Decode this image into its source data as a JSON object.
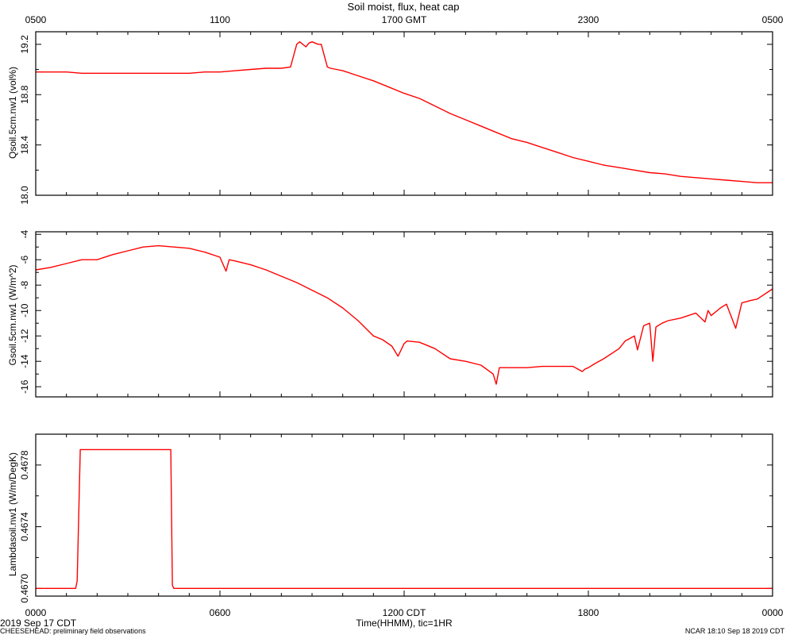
{
  "title": "Soil moist, flux, heat cap",
  "top_axis": {
    "ticks": [
      "0500",
      "1100",
      "1700 GMT",
      "2300",
      "0500"
    ]
  },
  "bottom_axis": {
    "ticks": [
      "0000",
      "0600",
      "1200 CDT",
      "1800",
      "0000"
    ],
    "label": "Time(HHMM), tic=1HR",
    "date_label": "2019 Sep 17 CDT"
  },
  "footer": {
    "left": "CHEESEHEAD: preliminary field observations",
    "right": "NCAR 18:10 Sep 18 2019 CDT"
  },
  "colors": {
    "line": "#ff0000",
    "axis": "#000000",
    "background": "#ffffff"
  },
  "chart_data": [
    {
      "type": "line",
      "ylabel": "Qsoil.5cm.nw1 (vol%)",
      "ylim": [
        18.0,
        19.3
      ],
      "yticks": [
        18.0,
        18.4,
        18.8,
        19.2
      ],
      "ytick_labels": [
        "18.0",
        "18.4",
        "18.8",
        "19.2"
      ],
      "xlim": [
        0,
        24
      ],
      "series": [
        {
          "x": [
            0,
            0.5,
            1.0,
            1.5,
            2.0,
            2.5,
            3.0,
            3.5,
            4.0,
            4.5,
            5.0,
            5.5,
            6.0,
            6.5,
            7.0,
            7.5,
            8.0,
            8.3,
            8.5,
            8.6,
            8.8,
            8.9,
            9.0,
            9.2,
            9.3,
            9.5,
            9.6,
            9.8,
            10.0,
            10.5,
            11.0,
            11.5,
            12.0,
            12.5,
            13.0,
            13.5,
            14.0,
            14.5,
            15.0,
            15.5,
            16.0,
            16.5,
            17.0,
            17.5,
            18.0,
            18.5,
            19.0,
            19.5,
            20.0,
            20.5,
            21.0,
            21.5,
            22.0,
            22.5,
            23.0,
            23.5,
            24.0
          ],
          "values": [
            18.98,
            18.98,
            18.98,
            18.97,
            18.97,
            18.97,
            18.97,
            18.97,
            18.97,
            18.97,
            18.97,
            18.98,
            18.98,
            18.99,
            19.0,
            19.01,
            19.01,
            19.02,
            19.2,
            19.22,
            19.18,
            19.21,
            19.22,
            19.2,
            19.2,
            19.02,
            19.01,
            19.0,
            18.99,
            18.95,
            18.91,
            18.86,
            18.81,
            18.77,
            18.71,
            18.65,
            18.6,
            18.55,
            18.5,
            18.45,
            18.42,
            18.38,
            18.34,
            18.3,
            18.27,
            18.24,
            18.22,
            18.2,
            18.18,
            18.17,
            18.15,
            18.14,
            18.13,
            18.12,
            18.11,
            18.1,
            18.1
          ]
        }
      ]
    },
    {
      "type": "line",
      "ylabel": "Gsoil.5cm.nw1 (W/m^2)",
      "ylim": [
        -16.8,
        -3.8
      ],
      "yticks": [
        -16,
        -14,
        -12,
        -10,
        -8,
        -6,
        -4
      ],
      "ytick_labels": [
        "-16",
        "-14",
        "-12",
        "-10",
        "-8",
        "-6",
        "-4"
      ],
      "xlim": [
        0,
        24
      ],
      "series": [
        {
          "x": [
            0,
            0.5,
            1.0,
            1.5,
            2.0,
            2.5,
            3.0,
            3.5,
            4.0,
            4.5,
            5.0,
            5.5,
            6.0,
            6.2,
            6.3,
            6.5,
            7.0,
            7.5,
            8.0,
            8.5,
            9.0,
            9.5,
            10.0,
            10.5,
            11.0,
            11.3,
            11.6,
            11.8,
            12.0,
            12.1,
            12.5,
            13.0,
            13.5,
            14.0,
            14.5,
            14.9,
            15.0,
            15.1,
            15.3,
            15.5,
            16.0,
            16.5,
            17.0,
            17.5,
            17.8,
            17.9,
            18.0,
            18.2,
            18.5,
            19.0,
            19.2,
            19.5,
            19.6,
            19.8,
            20.0,
            20.1,
            20.2,
            20.4,
            20.6,
            21.0,
            21.5,
            21.8,
            21.9,
            22.0,
            22.3,
            22.5,
            22.8,
            23.0,
            23.3,
            23.5,
            24.0
          ],
          "values": [
            -6.8,
            -6.6,
            -6.3,
            -6.0,
            -6.0,
            -5.6,
            -5.3,
            -5.0,
            -4.9,
            -5.0,
            -5.1,
            -5.4,
            -5.8,
            -6.9,
            -6.0,
            -6.1,
            -6.4,
            -6.8,
            -7.3,
            -7.8,
            -8.4,
            -9.0,
            -9.8,
            -10.8,
            -12.0,
            -12.3,
            -12.8,
            -13.6,
            -12.6,
            -12.4,
            -12.5,
            -13.0,
            -13.8,
            -14.0,
            -14.3,
            -15.0,
            -15.8,
            -14.5,
            -14.5,
            -14.5,
            -14.5,
            -14.4,
            -14.4,
            -14.4,
            -14.8,
            -14.6,
            -14.5,
            -14.2,
            -13.8,
            -13.0,
            -12.4,
            -12.0,
            -13.1,
            -11.2,
            -11.0,
            -14.0,
            -11.3,
            -11.0,
            -10.8,
            -10.6,
            -10.2,
            -10.9,
            -10.0,
            -10.4,
            -9.8,
            -9.5,
            -11.4,
            -9.4,
            -9.2,
            -9.1,
            -8.3
          ]
        }
      ]
    },
    {
      "type": "line",
      "ylabel": "Lambdasoil.nw1 (W/m/DegK)",
      "ylim": [
        0.46695,
        0.468
      ],
      "yticks": [
        0.467,
        0.4674,
        0.4678
      ],
      "ytick_labels": [
        "0.4670",
        "0.4674",
        "0.4678"
      ],
      "xlim": [
        0,
        24
      ],
      "series": [
        {
          "x": [
            0,
            1.3,
            1.35,
            1.45,
            4.4,
            4.45,
            4.5,
            24
          ],
          "values": [
            0.467,
            0.467,
            0.46705,
            0.4679,
            0.4679,
            0.46702,
            0.467,
            0.467
          ]
        }
      ]
    }
  ]
}
